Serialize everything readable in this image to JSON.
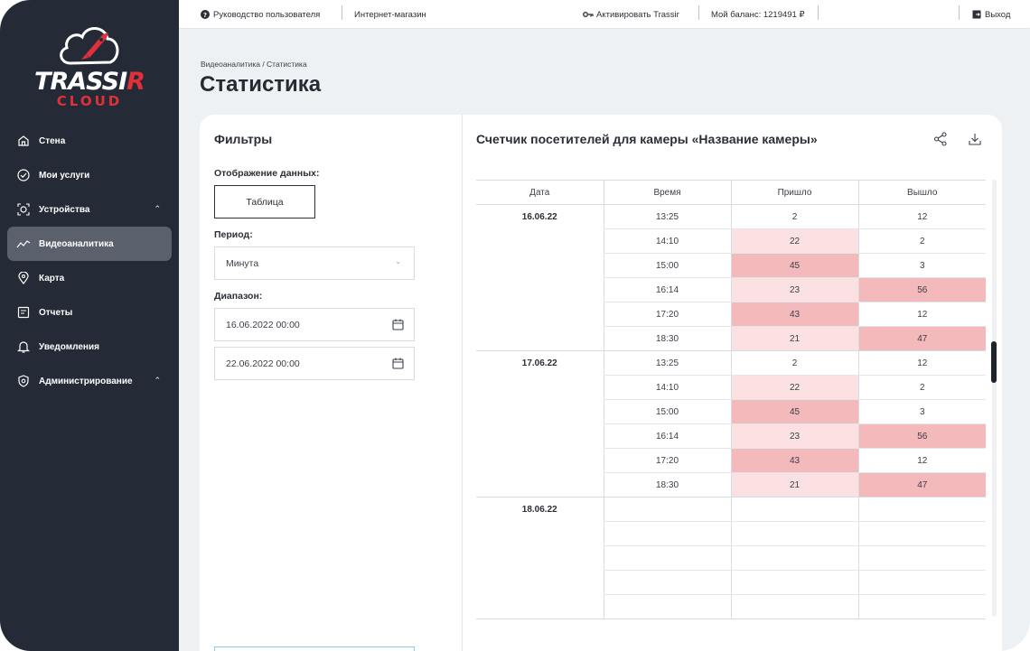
{
  "app": {
    "logo_word": "TRASSIR",
    "logo_sub": "CLOUD"
  },
  "topbar": {
    "guide": "Руководство пользователя",
    "shop": "Интернет-магазин",
    "activate": "Активировать Trassir",
    "balance": "Мой баланс: 1219491 ₽",
    "logout": "Выход"
  },
  "sidebar": {
    "items": [
      {
        "label": "Стена",
        "icon": "home-icon"
      },
      {
        "label": "Мои услуги",
        "icon": "check-circle-icon"
      },
      {
        "label": "Устройства",
        "icon": "camera-icon",
        "expandable": true
      },
      {
        "label": "Видеоаналитика",
        "icon": "analytics-icon",
        "active": true
      },
      {
        "label": "Карта",
        "icon": "map-pin-icon"
      },
      {
        "label": "Отчеты",
        "icon": "report-icon"
      },
      {
        "label": "Уведомления",
        "icon": "bell-icon"
      },
      {
        "label": "Администрирование",
        "icon": "shield-icon",
        "expandable": true
      }
    ]
  },
  "header": {
    "breadcrumb": "Видеоаналитика / Статистика",
    "title": "Статистика"
  },
  "filters": {
    "title": "Фильтры",
    "display_label": "Отображение данных:",
    "display_value": "Таблица",
    "period_label": "Период:",
    "period_value": "Минута",
    "range_label": "Диапазон:",
    "range_from": "16.06.2022 00:00",
    "range_to": "22.06.2022 00:00"
  },
  "table": {
    "title": "Счетчик посетителей для камеры «Название камеры»",
    "columns": [
      "Дата",
      "Время",
      "Пришло",
      "Вышло"
    ],
    "groups": [
      {
        "date": "16.06.22",
        "rows": [
          {
            "time": "13:25",
            "in": "2",
            "out": "12",
            "in_level": "none",
            "out_level": "none"
          },
          {
            "time": "14:10",
            "in": "22",
            "out": "2",
            "in_level": "light",
            "out_level": "none"
          },
          {
            "time": "15:00",
            "in": "45",
            "out": "3",
            "in_level": "dark",
            "out_level": "none"
          },
          {
            "time": "16:14",
            "in": "23",
            "out": "56",
            "in_level": "light",
            "out_level": "dark"
          },
          {
            "time": "17:20",
            "in": "43",
            "out": "12",
            "in_level": "dark",
            "out_level": "none"
          },
          {
            "time": "18:30",
            "in": "21",
            "out": "47",
            "in_level": "light",
            "out_level": "dark"
          }
        ]
      },
      {
        "date": "17.06.22",
        "rows": [
          {
            "time": "13:25",
            "in": "2",
            "out": "12",
            "in_level": "none",
            "out_level": "none"
          },
          {
            "time": "14:10",
            "in": "22",
            "out": "2",
            "in_level": "light",
            "out_level": "none"
          },
          {
            "time": "15:00",
            "in": "45",
            "out": "3",
            "in_level": "dark",
            "out_level": "none"
          },
          {
            "time": "16:14",
            "in": "23",
            "out": "56",
            "in_level": "light",
            "out_level": "dark"
          },
          {
            "time": "17:20",
            "in": "43",
            "out": "12",
            "in_level": "dark",
            "out_level": "none"
          },
          {
            "time": "18:30",
            "in": "21",
            "out": "47",
            "in_level": "light",
            "out_level": "dark"
          }
        ]
      },
      {
        "date": "18.06.22",
        "rows": [
          {
            "time": "",
            "in": "",
            "out": "",
            "in_level": "none",
            "out_level": "none"
          },
          {
            "time": "",
            "in": "",
            "out": "",
            "in_level": "none",
            "out_level": "none"
          },
          {
            "time": "",
            "in": "",
            "out": "",
            "in_level": "none",
            "out_level": "none"
          },
          {
            "time": "",
            "in": "",
            "out": "",
            "in_level": "none",
            "out_level": "none"
          },
          {
            "time": "",
            "in": "",
            "out": "",
            "in_level": "none",
            "out_level": "none"
          }
        ]
      }
    ]
  },
  "colors": {
    "sidebar_bg": "#242b36",
    "accent_red": "#e0303a",
    "cell_light": "#fbe1e2",
    "cell_dark": "#f3b9bb"
  }
}
